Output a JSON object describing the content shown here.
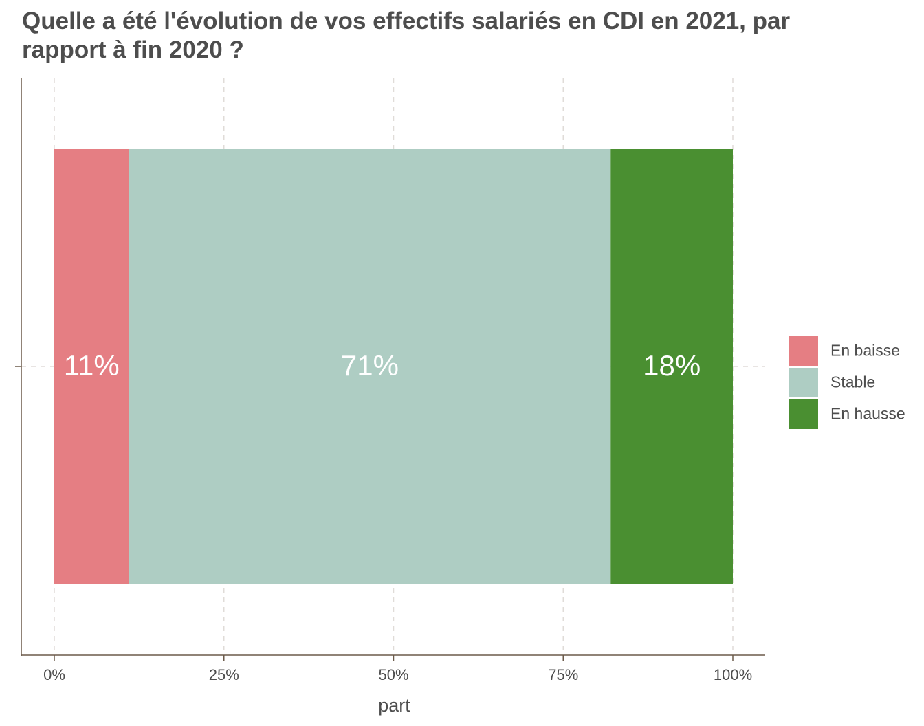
{
  "chart_data": {
    "type": "bar",
    "orientation": "horizontal",
    "stacked": true,
    "title": "Quelle a été l'évolution de vos effectifs salariés en CDI en 2021, par\nrapport à fin 2020 ?",
    "xlabel": "part",
    "ylabel": "",
    "xlim": [
      0,
      1
    ],
    "x_ticks": [
      0,
      0.25,
      0.5,
      0.75,
      1
    ],
    "x_tick_labels": [
      "0%",
      "25%",
      "50%",
      "75%",
      "100%"
    ],
    "grid": true,
    "legend_position": "right",
    "series": [
      {
        "name": "En baisse",
        "value": 0.11,
        "label": "11%",
        "color": "#e57e83"
      },
      {
        "name": "Stable",
        "value": 0.71,
        "label": "71%",
        "color": "#aecdc3"
      },
      {
        "name": "En hausse",
        "value": 0.18,
        "label": "18%",
        "color": "#4a8f31"
      }
    ]
  }
}
